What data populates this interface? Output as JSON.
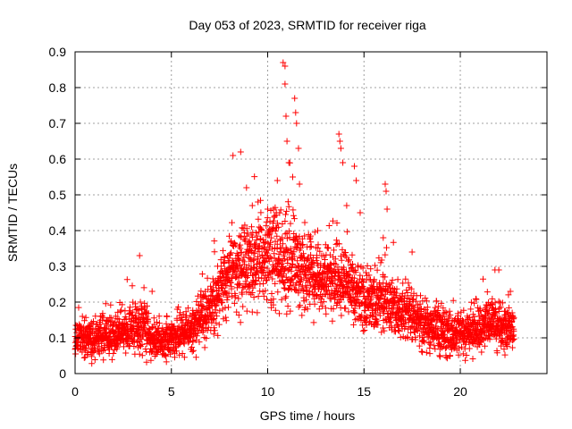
{
  "chart_data": {
    "type": "scatter",
    "title": "Day 053 of 2023, SRMTID for receiver riga",
    "xlabel": "GPS time / hours",
    "ylabel": "SRMTID / TECUs",
    "xlim": [
      0,
      24.5
    ],
    "ylim": [
      0,
      0.9
    ],
    "x_ticks": [
      0,
      5,
      10,
      15,
      20
    ],
    "y_ticks": [
      0,
      0.1,
      0.2,
      0.3,
      0.4,
      0.5,
      0.6,
      0.7,
      0.8,
      0.9
    ],
    "grid": true,
    "marker": "+",
    "series": [
      {
        "name": "SRMTID",
        "color": "#ff0000",
        "profile": [
          [
            0.0,
            0.1,
            0.05
          ],
          [
            1.0,
            0.1,
            0.05
          ],
          [
            2.0,
            0.11,
            0.05
          ],
          [
            3.0,
            0.13,
            0.06
          ],
          [
            3.5,
            0.15,
            0.07
          ],
          [
            4.0,
            0.09,
            0.04
          ],
          [
            5.0,
            0.1,
            0.05
          ],
          [
            6.0,
            0.12,
            0.05
          ],
          [
            7.0,
            0.18,
            0.07
          ],
          [
            8.0,
            0.28,
            0.1
          ],
          [
            9.0,
            0.3,
            0.11
          ],
          [
            10.0,
            0.32,
            0.12
          ],
          [
            11.0,
            0.33,
            0.14
          ],
          [
            12.0,
            0.27,
            0.08
          ],
          [
            13.0,
            0.26,
            0.08
          ],
          [
            14.0,
            0.26,
            0.09
          ],
          [
            15.0,
            0.2,
            0.07
          ],
          [
            16.0,
            0.2,
            0.08
          ],
          [
            17.0,
            0.17,
            0.07
          ],
          [
            18.0,
            0.14,
            0.06
          ],
          [
            19.0,
            0.12,
            0.06
          ],
          [
            20.0,
            0.11,
            0.05
          ],
          [
            21.0,
            0.13,
            0.06
          ],
          [
            22.0,
            0.14,
            0.06
          ],
          [
            22.8,
            0.12,
            0.05
          ]
        ],
        "notable_points": [
          [
            3.35,
            0.33
          ],
          [
            4.0,
            0.23
          ],
          [
            8.2,
            0.61
          ],
          [
            8.6,
            0.62
          ],
          [
            8.9,
            0.52
          ],
          [
            9.2,
            0.47
          ],
          [
            10.0,
            0.46
          ],
          [
            10.3,
            0.46
          ],
          [
            10.5,
            0.54
          ],
          [
            10.8,
            0.87
          ],
          [
            10.9,
            0.86
          ],
          [
            10.9,
            0.81
          ],
          [
            10.95,
            0.72
          ],
          [
            11.0,
            0.65
          ],
          [
            11.1,
            0.59
          ],
          [
            11.3,
            0.55
          ],
          [
            11.4,
            0.77
          ],
          [
            11.45,
            0.73
          ],
          [
            11.5,
            0.7
          ],
          [
            11.6,
            0.63
          ],
          [
            11.65,
            0.53
          ],
          [
            13.7,
            0.67
          ],
          [
            13.75,
            0.65
          ],
          [
            13.8,
            0.63
          ],
          [
            13.9,
            0.59
          ],
          [
            14.1,
            0.47
          ],
          [
            14.5,
            0.58
          ],
          [
            14.6,
            0.54
          ],
          [
            14.8,
            0.45
          ],
          [
            16.1,
            0.53
          ],
          [
            16.15,
            0.51
          ],
          [
            16.2,
            0.46
          ],
          [
            16.0,
            0.38
          ],
          [
            17.5,
            0.34
          ],
          [
            21.8,
            0.29
          ],
          [
            22.0,
            0.29
          ],
          [
            22.6,
            0.23
          ],
          [
            9.5,
            0.48
          ],
          [
            12.2,
            0.38
          ],
          [
            12.6,
            0.4
          ]
        ]
      }
    ]
  }
}
